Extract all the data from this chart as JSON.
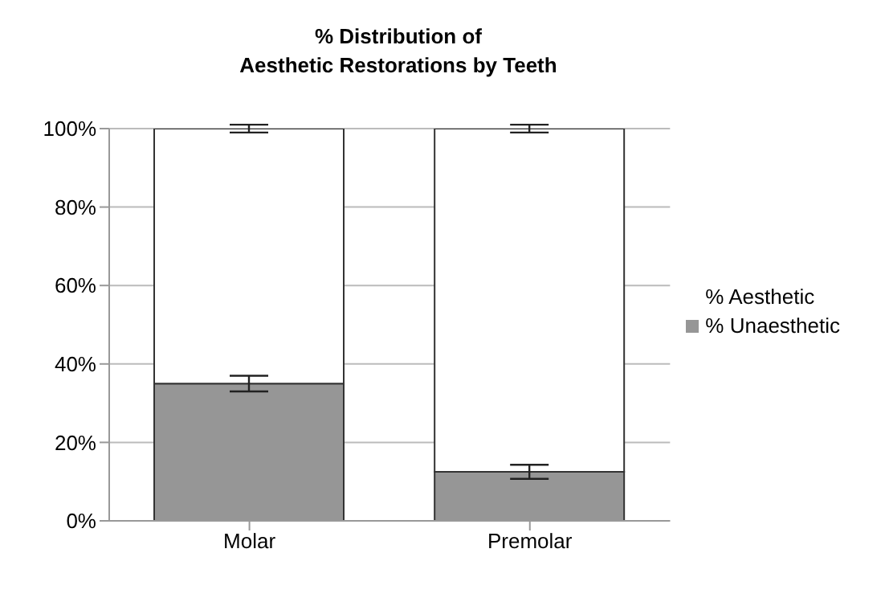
{
  "chart_data": {
    "type": "bar",
    "title": "% Distribution of\nAesthetic Restorations by Teeth",
    "categories": [
      "Molar",
      "Premolar"
    ],
    "stacked": true,
    "series": [
      {
        "name": "% Unaesthetic",
        "color": "#969696",
        "values": [
          35,
          12.5
        ],
        "errors": [
          2,
          1.8
        ]
      },
      {
        "name": "% Aesthetic",
        "color": "#ffffff",
        "values": [
          65,
          87.5
        ],
        "errors": [
          1,
          1
        ]
      }
    ],
    "ylim": [
      0,
      100
    ],
    "yticks": [
      {
        "value": 0,
        "label": "0%"
      },
      {
        "value": 20,
        "label": "20%"
      },
      {
        "value": 40,
        "label": "40%"
      },
      {
        "value": 60,
        "label": "60%"
      },
      {
        "value": 80,
        "label": "80%"
      },
      {
        "value": 100,
        "label": "100%"
      }
    ],
    "grid": "y",
    "legend": "right"
  }
}
